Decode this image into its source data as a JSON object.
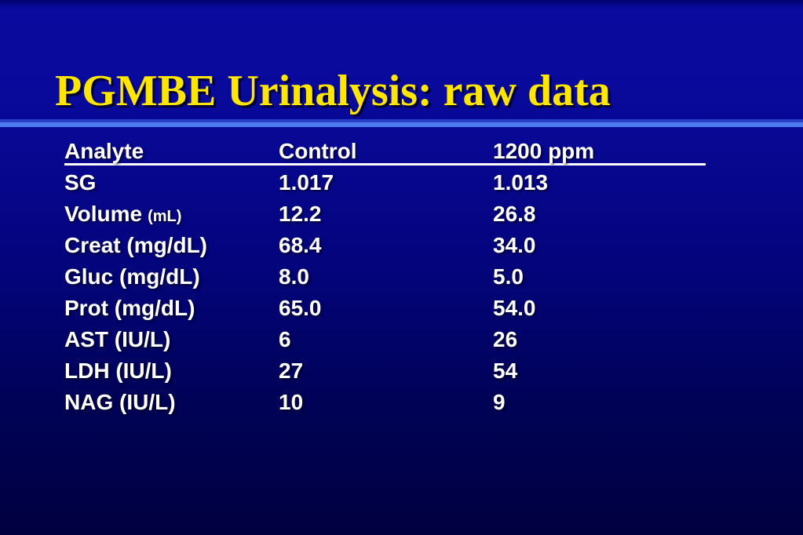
{
  "slide": {
    "title": "PGMBE Urinalysis: raw data",
    "colors": {
      "background_top": "#0a0a9e",
      "background_bottom": "#000040",
      "title_text": "#ffe600",
      "body_text": "#ffffff",
      "divider_top": "#2740c6",
      "divider_bottom": "#4f7bf0",
      "header_underline": "#ffffff"
    },
    "table": {
      "headers": [
        "Analyte",
        "Control",
        "1200 ppm"
      ],
      "rows": [
        {
          "analyte": "SG",
          "unit": "",
          "control": "1.017",
          "ppm1200": "1.013"
        },
        {
          "analyte": "Volume",
          "unit": "(mL)",
          "control": "12.2",
          "ppm1200": "26.8"
        },
        {
          "analyte": "Creat (mg/dL)",
          "unit": "",
          "control": "68.4",
          "ppm1200": "34.0"
        },
        {
          "analyte": "Gluc (mg/dL)",
          "unit": "",
          "control": "8.0",
          "ppm1200": "5.0"
        },
        {
          "analyte": "Prot (mg/dL)",
          "unit": "",
          "control": "65.0",
          "ppm1200": "54.0"
        },
        {
          "analyte": "AST (IU/L)",
          "unit": "",
          "control": "6",
          "ppm1200": "26"
        },
        {
          "analyte": "LDH (IU/L)",
          "unit": "",
          "control": "27",
          "ppm1200": "54"
        },
        {
          "analyte": "NAG (IU/L)",
          "unit": "",
          "control": "10",
          "ppm1200": "9"
        }
      ]
    }
  }
}
